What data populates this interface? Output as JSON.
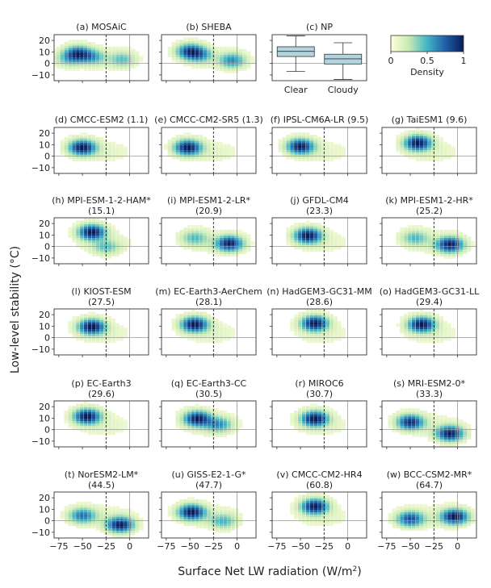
{
  "chart_data": {
    "type": "heatmap",
    "figure": {
      "ylabel": "Low-level stability (°C)",
      "xlabel": "Surface Net LW radiation (W/m",
      "xlabel_superscript": "2",
      "xlabel_close": ")",
      "xlim": [
        -80,
        20
      ],
      "ylim": [
        -15,
        25
      ],
      "xticks": [
        -75,
        -50,
        -25,
        0
      ],
      "yticks": [
        -10,
        0,
        10,
        20
      ],
      "dashed_line_x": -25,
      "colorbar": {
        "label": "Density",
        "ticks": [
          "0",
          "0.5",
          "1"
        ],
        "range": [
          0,
          1
        ],
        "colors": [
          "#ffffd9",
          "#c7e9b4",
          "#41b6c4",
          "#225ea8",
          "#081d58"
        ]
      }
    },
    "boxplot": {
      "title": "(c) NP",
      "categories": [
        "Clear",
        "Cloudy"
      ],
      "ylim": [
        -15,
        25
      ],
      "yticks": [
        -10,
        0,
        10,
        20
      ],
      "stats": [
        {
          "category": "Clear",
          "whisker_low": -7,
          "q1": 6,
          "median": 10.5,
          "q3": 14.5,
          "whisker_high": 24
        },
        {
          "category": "Cloudy",
          "whisker_low": -14,
          "q1": -0.5,
          "median": 4,
          "q3": 8,
          "whisker_high": 18
        }
      ]
    },
    "panels": [
      {
        "label": "(a)",
        "name": "MOSAiC",
        "score": "",
        "wrap": false,
        "peaks": [
          [
            -55,
            9,
            1.0
          ],
          [
            -40,
            6,
            0.5
          ],
          [
            -8,
            4,
            0.4
          ],
          [
            -65,
            4,
            0.35
          ]
        ]
      },
      {
        "label": "(b)",
        "name": "SHEBA",
        "score": "",
        "wrap": false,
        "peaks": [
          [
            -50,
            11,
            1.0
          ],
          [
            -40,
            8,
            0.6
          ],
          [
            -5,
            3,
            0.7
          ]
        ]
      },
      {
        "label": "(d)",
        "name": "CMCC-ESM2",
        "score": "(1.1)",
        "wrap": false,
        "peaks": [
          [
            -50,
            8,
            1.0
          ]
        ]
      },
      {
        "label": "(e)",
        "name": "CMCC-CM2-SR5",
        "score": "(1.3)",
        "wrap": false,
        "peaks": [
          [
            -52,
            8,
            1.0
          ]
        ]
      },
      {
        "label": "(f)",
        "name": "IPSL-CM6A-LR",
        "score": "(9.5)",
        "wrap": false,
        "peaks": [
          [
            -50,
            9,
            1.0
          ]
        ]
      },
      {
        "label": "(g)",
        "name": "TaiESM1",
        "score": "(9.6)",
        "wrap": false,
        "peaks": [
          [
            -42,
            12,
            1.0
          ]
        ]
      },
      {
        "label": "(h)",
        "name": "MPI-ESM-1-2-HAM*",
        "score": "(15.1)",
        "wrap": true,
        "peaks": [
          [
            -40,
            13,
            1.0
          ],
          [
            -25,
            0,
            0.3
          ]
        ]
      },
      {
        "label": "(i)",
        "name": "MPI-ESM1-2-LR*",
        "score": "(20.9)",
        "wrap": true,
        "peaks": [
          [
            -45,
            8,
            0.35
          ],
          [
            -8,
            3,
            1.0
          ]
        ]
      },
      {
        "label": "(j)",
        "name": "GFDL-CM4",
        "score": "(23.3)",
        "wrap": true,
        "peaks": [
          [
            -42,
            10,
            1.0
          ]
        ]
      },
      {
        "label": "(k)",
        "name": "MPI-ESM1-2-HR*",
        "score": "(25.2)",
        "wrap": true,
        "peaks": [
          [
            -45,
            8,
            0.35
          ],
          [
            -8,
            2,
            1.0
          ]
        ]
      },
      {
        "label": "(l)",
        "name": "KIOST-ESM",
        "score": "(27.5)",
        "wrap": true,
        "peaks": [
          [
            -40,
            10,
            1.0
          ]
        ]
      },
      {
        "label": "(m)",
        "name": "EC-Earth3-AerChem",
        "score": "(28.1)",
        "wrap": true,
        "peaks": [
          [
            -45,
            12,
            1.0
          ]
        ]
      },
      {
        "label": "(n)",
        "name": "HadGEM3-GC31-MM",
        "score": "(28.6)",
        "wrap": true,
        "peaks": [
          [
            -35,
            13,
            1.0
          ]
        ]
      },
      {
        "label": "(o)",
        "name": "HadGEM3-GC31-LL",
        "score": "(29.4)",
        "wrap": true,
        "peaks": [
          [
            -38,
            12,
            1.0
          ]
        ]
      },
      {
        "label": "(p)",
        "name": "EC-Earth3",
        "score": "(29.6)",
        "wrap": true,
        "peaks": [
          [
            -45,
            12,
            1.0
          ]
        ]
      },
      {
        "label": "(q)",
        "name": "EC-Earth3-CC",
        "score": "(30.5)",
        "wrap": true,
        "peaks": [
          [
            -42,
            10,
            1.0
          ],
          [
            -20,
            5,
            0.5
          ]
        ]
      },
      {
        "label": "(r)",
        "name": "MIROC6",
        "score": "(30.7)",
        "wrap": true,
        "peaks": [
          [
            -35,
            10,
            1.0
          ]
        ]
      },
      {
        "label": "(s)",
        "name": "MRI-ESM2-0*",
        "score": "(33.3)",
        "wrap": true,
        "peaks": [
          [
            -50,
            7,
            0.9
          ],
          [
            -8,
            -3,
            1.0
          ]
        ]
      },
      {
        "label": "(t)",
        "name": "NorESM2-LM*",
        "score": "(44.5)",
        "wrap": true,
        "peaks": [
          [
            -50,
            5,
            0.6
          ],
          [
            -10,
            -3,
            1.0
          ]
        ]
      },
      {
        "label": "(u)",
        "name": "GISS-E2-1-G*",
        "score": "(47.7)",
        "wrap": true,
        "peaks": [
          [
            -48,
            8,
            1.0
          ],
          [
            -15,
            0,
            0.35
          ]
        ]
      },
      {
        "label": "(v)",
        "name": "CMCC-CM2-HR4",
        "score": "(60.8)",
        "wrap": true,
        "peaks": [
          [
            -35,
            13,
            1.0
          ]
        ]
      },
      {
        "label": "(w)",
        "name": "BCC-CSM2-MR*",
        "score": "(64.7)",
        "wrap": true,
        "peaks": [
          [
            -50,
            2,
            0.75
          ],
          [
            -3,
            4,
            1.0
          ]
        ]
      }
    ]
  }
}
